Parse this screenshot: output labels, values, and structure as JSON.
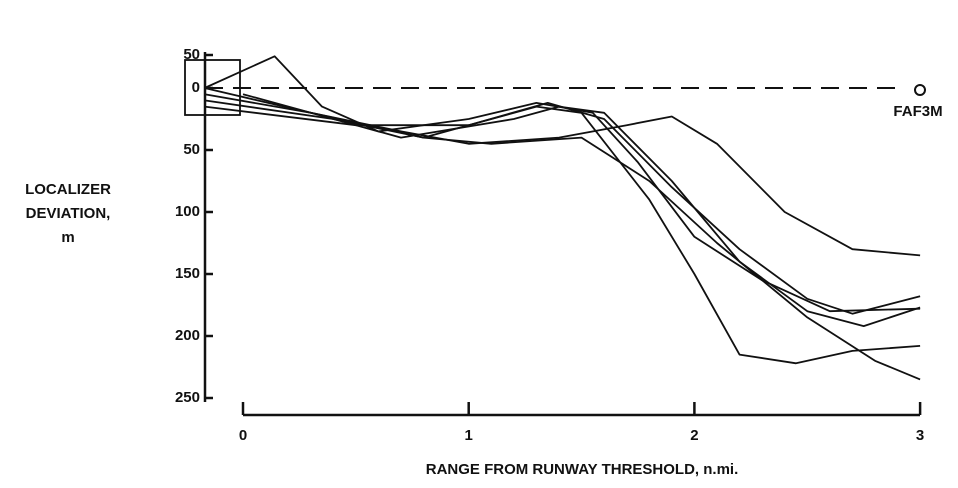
{
  "chart_data": {
    "type": "line",
    "ylabel": [
      "LOCALIZER",
      "DEVIATION,",
      "m"
    ],
    "xlabel": "RANGE FROM RUNWAY THRESHOLD, n.mi.",
    "annotation": "FAF3M",
    "xlim": [
      -0.17,
      3
    ],
    "xticks": [
      0,
      1,
      2,
      3
    ],
    "ylim": [
      -50,
      250
    ],
    "yticks": [
      {
        "value": -50,
        "label": "50"
      },
      0,
      50,
      100,
      150,
      200,
      250
    ],
    "inverted_y": true,
    "color": "#111111",
    "series": [
      {
        "x": [
          -0.17,
          0.3,
          0.7,
          1.0,
          1.4,
          1.7,
          1.9,
          2.1,
          2.4,
          2.7,
          3.0
        ],
        "values": [
          5,
          20,
          35,
          45,
          40,
          30,
          23,
          45,
          100,
          130,
          135
        ]
      },
      {
        "x": [
          -0.17,
          0.3,
          0.8,
          1.3,
          1.5,
          1.8,
          2.0,
          2.2,
          2.45,
          2.7,
          3.0
        ],
        "values": [
          0,
          20,
          40,
          15,
          20,
          90,
          150,
          215,
          222,
          212,
          208
        ]
      },
      {
        "x": [
          -0.17,
          0.4,
          0.8,
          1.1,
          1.5,
          1.8,
          2.1,
          2.5,
          2.8,
          3.0
        ],
        "values": [
          10,
          25,
          40,
          45,
          40,
          75,
          125,
          185,
          220,
          235
        ]
      },
      {
        "x": [
          -0.17,
          0.5,
          1.0,
          1.35,
          1.6,
          1.9,
          2.2,
          2.5,
          2.7,
          3.0
        ],
        "values": [
          15,
          30,
          30,
          12,
          25,
          80,
          130,
          170,
          182,
          168
        ]
      },
      {
        "x": [
          0.0,
          0.3,
          0.7,
          1.2,
          1.4,
          1.6,
          1.9,
          2.2,
          2.5,
          2.75,
          3.0
        ],
        "values": [
          5,
          20,
          40,
          25,
          15,
          20,
          75,
          140,
          180,
          192,
          177
        ]
      },
      {
        "x": [
          -0.17,
          0.14,
          0.35,
          0.6,
          1.0,
          1.3,
          1.55,
          1.75,
          2.0,
          2.3,
          2.6,
          3.0
        ],
        "values": [
          0,
          -48,
          15,
          35,
          25,
          12,
          20,
          60,
          120,
          155,
          180,
          178
        ]
      }
    ]
  }
}
